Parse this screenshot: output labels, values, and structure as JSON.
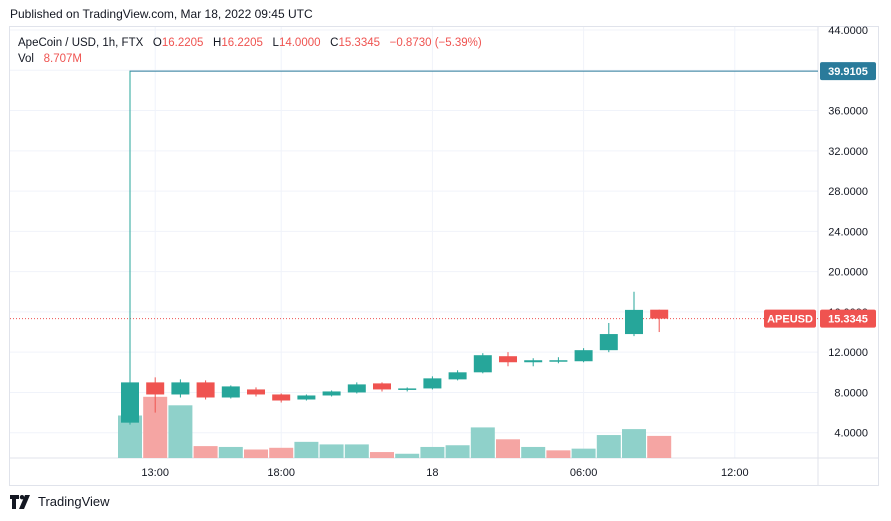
{
  "header": {
    "published": "Published on TradingView.com, Mar 18, 2022 09:45 UTC"
  },
  "legend": {
    "symbol": "ApeCoin / USD, 1h, FTX",
    "o_label": "O",
    "o_value": "16.2205",
    "h_label": "H",
    "h_value": "16.2205",
    "l_label": "L",
    "l_value": "14.0000",
    "c_label": "C",
    "c_value": "15.3345",
    "change": "−0.8730 (−5.39%)",
    "vol_label": "Vol",
    "vol_value": "8.707M"
  },
  "footer": {
    "brand": "TradingView"
  },
  "colors": {
    "up": "#26a69a",
    "down": "#ef5350",
    "up_volume": "#8fd1ca",
    "down_volume": "#f5a5a3",
    "grid": "#f0f3fa",
    "axis_text": "#131722",
    "high_line": "#2a7b9b"
  },
  "chart_data": {
    "type": "candlestick",
    "title": "ApeCoin / USD, 1h, FTX",
    "ylim": [
      0,
      44
    ],
    "y_ticks": [
      "4.0000",
      "8.0000",
      "12.0000",
      "16.0000",
      "20.0000",
      "24.0000",
      "28.0000",
      "32.0000",
      "36.0000",
      "40.0000",
      "44.0000"
    ],
    "y_tick_values": [
      4,
      8,
      12,
      16,
      20,
      24,
      28,
      32,
      36,
      40,
      44
    ],
    "x_ticks": [
      {
        "label": "13:00",
        "index": 1
      },
      {
        "label": "18:00",
        "index": 6
      },
      {
        "label": "18",
        "index": 12
      },
      {
        "label": "06:00",
        "index": 18
      },
      {
        "label": "12:00",
        "index": 24
      }
    ],
    "candles": [
      {
        "o": 5.0,
        "h": 39.91,
        "l": 4.8,
        "c": 9.0
      },
      {
        "o": 9.0,
        "h": 9.5,
        "l": 6.0,
        "c": 7.8
      },
      {
        "o": 7.8,
        "h": 9.3,
        "l": 7.5,
        "c": 9.0
      },
      {
        "o": 9.0,
        "h": 9.2,
        "l": 7.3,
        "c": 7.5
      },
      {
        "o": 7.5,
        "h": 8.7,
        "l": 7.4,
        "c": 8.6
      },
      {
        "o": 8.3,
        "h": 8.5,
        "l": 7.6,
        "c": 7.8
      },
      {
        "o": 7.8,
        "h": 7.9,
        "l": 7.0,
        "c": 7.2
      },
      {
        "o": 7.3,
        "h": 7.8,
        "l": 7.2,
        "c": 7.7
      },
      {
        "o": 7.7,
        "h": 8.2,
        "l": 7.6,
        "c": 8.1
      },
      {
        "o": 8.0,
        "h": 9.0,
        "l": 7.9,
        "c": 8.8
      },
      {
        "o": 8.9,
        "h": 9.0,
        "l": 8.1,
        "c": 8.3
      },
      {
        "o": 8.3,
        "h": 8.5,
        "l": 8.1,
        "c": 8.4
      },
      {
        "o": 8.4,
        "h": 9.6,
        "l": 8.3,
        "c": 9.4
      },
      {
        "o": 9.3,
        "h": 10.2,
        "l": 9.2,
        "c": 10.0
      },
      {
        "o": 10.0,
        "h": 11.9,
        "l": 9.9,
        "c": 11.7
      },
      {
        "o": 11.6,
        "h": 12.0,
        "l": 10.6,
        "c": 11.0
      },
      {
        "o": 11.0,
        "h": 11.4,
        "l": 10.6,
        "c": 11.2
      },
      {
        "o": 11.1,
        "h": 11.5,
        "l": 10.9,
        "c": 11.2
      },
      {
        "o": 11.1,
        "h": 12.4,
        "l": 11.0,
        "c": 12.2
      },
      {
        "o": 12.2,
        "h": 14.9,
        "l": 12.0,
        "c": 13.8
      },
      {
        "o": 13.8,
        "h": 18.0,
        "l": 13.6,
        "c": 16.2
      },
      {
        "o": 16.2205,
        "h": 16.2205,
        "l": 14.0,
        "c": 15.3345
      }
    ],
    "volume_range": [
      0,
      6.2
    ],
    "volumes": [
      {
        "v": 5.0,
        "dir": "up"
      },
      {
        "v": 7.2,
        "dir": "down"
      },
      {
        "v": 6.2,
        "dir": "up"
      },
      {
        "v": 1.4,
        "dir": "down"
      },
      {
        "v": 1.3,
        "dir": "up"
      },
      {
        "v": 1.0,
        "dir": "down"
      },
      {
        "v": 1.2,
        "dir": "down"
      },
      {
        "v": 1.9,
        "dir": "up"
      },
      {
        "v": 1.6,
        "dir": "up"
      },
      {
        "v": 1.6,
        "dir": "up"
      },
      {
        "v": 0.7,
        "dir": "down"
      },
      {
        "v": 0.5,
        "dir": "up"
      },
      {
        "v": 1.3,
        "dir": "up"
      },
      {
        "v": 1.5,
        "dir": "up"
      },
      {
        "v": 3.6,
        "dir": "up"
      },
      {
        "v": 2.2,
        "dir": "down"
      },
      {
        "v": 1.3,
        "dir": "up"
      },
      {
        "v": 0.9,
        "dir": "down"
      },
      {
        "v": 1.1,
        "dir": "up"
      },
      {
        "v": 2.7,
        "dir": "up"
      },
      {
        "v": 3.4,
        "dir": "up"
      },
      {
        "v": 2.6,
        "dir": "down"
      }
    ],
    "high_marker": {
      "value": 39.9105,
      "label": "39.9105",
      "from_index": 0
    },
    "last_price": {
      "value": 15.3345,
      "symbol": "APEUSD",
      "label": "15.3345"
    }
  }
}
